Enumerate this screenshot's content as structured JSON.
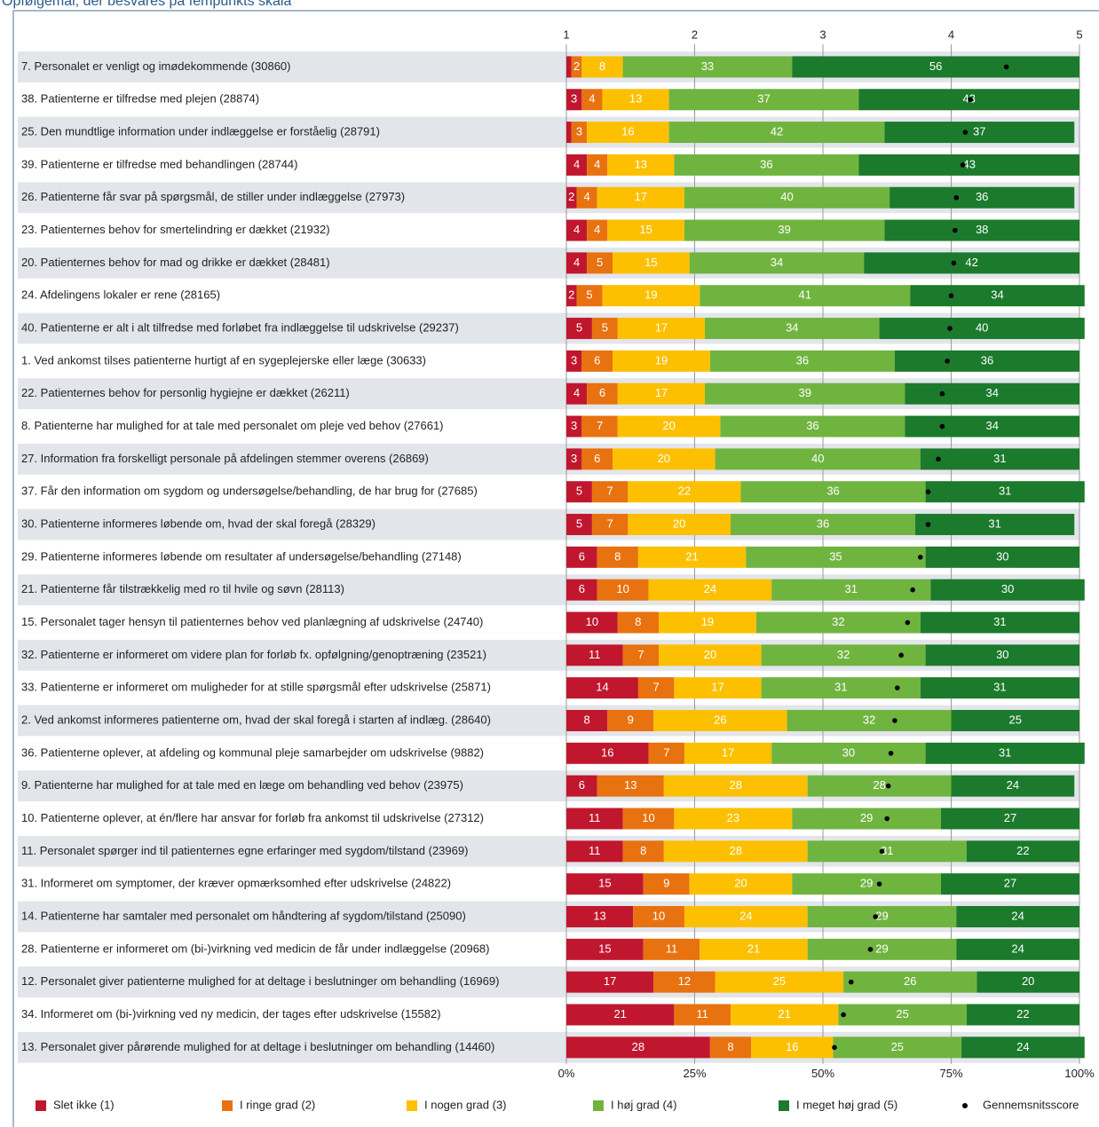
{
  "chart_data": {
    "type": "bar",
    "stacked": true,
    "orientation": "horizontal",
    "title": "Opfølgemål, der besvares på fempunkts skala",
    "categories": [
      "7. Personalet er venligt og imødekommende (30860)",
      "38. Patienterne er tilfredse med plejen (28874)",
      "25. Den mundtlige information under indlæggelse er forståelig (28791)",
      "39. Patienterne er tilfredse med behandlingen (28744)",
      "26. Patienterne får svar på spørgsmål, de stiller under indlæggelse (27973)",
      "23. Patienternes behov for smertelindring er dækket (21932)",
      "20. Patienternes behov for mad og drikke er dækket (28481)",
      "24. Afdelingens lokaler er rene (28165)",
      "40. Patienterne er alt i alt tilfredse med forløbet fra indlæggelse til udskrivelse (29237)",
      "1. Ved ankomst tilses patienterne hurtigt af en sygeplejerske eller læge (30633)",
      "22. Patienternes behov for personlig hygiejne er dækket (26211)",
      "8. Patienterne har mulighed for at tale med personalet om pleje ved behov (27661)",
      "27. Information fra forskelligt personale på afdelingen stemmer overens (26869)",
      "37. Får den information om sygdom og undersøgelse/behandling, de har brug for (27685)",
      "30. Patienterne informeres løbende om, hvad der skal foregå (28329)",
      "29. Patienterne informeres løbende om resultater af undersøgelse/behandling (27148)",
      "21. Patienterne får tilstrækkelig med ro til hvile og søvn (28113)",
      "15. Personalet tager hensyn til patienternes behov ved planlægning af udskrivelse (24740)",
      "32. Patienterne er informeret om videre plan for forløb fx. opfølgning/genoptræning (23521)",
      "33. Patienterne er informeret om muligheder for at stille spørgsmål efter udskrivelse (25871)",
      "2. Ved ankomst informeres patienterne om, hvad der skal foregå i starten af indlæg. (28640)",
      "36. Patienterne oplever, at afdeling og kommunal pleje samarbejder om udskrivelse (9882)",
      "9. Patienterne har mulighed for at tale med en læge om behandling ved behov (23975)",
      "10. Patienterne oplever, at én/flere har ansvar for forløb fra ankomst til udskrivelse (27312)",
      "11. Personalet spørger ind til patienternes egne erfaringer med sygdom/tilstand (23969)",
      "31. Informeret om symptomer, der kræver opmærksomhed efter udskrivelse (24822)",
      "14. Patienterne har samtaler med personalet om håndtering af sygdom/tilstand (25090)",
      "28.  Patienterne er informeret om (bi-)virkning ved medicin de får under indlæggelse (20968)",
      "12. Personalet giver patienterne mulighed for at deltage i beslutninger om behandling (16969)",
      "34. Informeret om (bi-)virkning ved ny medicin, der tages efter udskrivelse (15582)",
      "13. Personalet giver pårørende mulighed for at deltage i beslutninger om behandling (14460)"
    ],
    "series": [
      {
        "name": "Slet ikke (1)",
        "color": "#c0172f",
        "values": [
          1,
          3,
          1,
          4,
          2,
          4,
          4,
          2,
          5,
          3,
          4,
          3,
          3,
          5,
          5,
          6,
          6,
          10,
          11,
          14,
          8,
          16,
          6,
          11,
          11,
          15,
          13,
          15,
          17,
          21,
          28
        ]
      },
      {
        "name": "I ringe grad (2)",
        "color": "#e8720f",
        "values": [
          2,
          4,
          3,
          4,
          4,
          4,
          5,
          5,
          5,
          6,
          6,
          7,
          6,
          7,
          7,
          8,
          10,
          8,
          7,
          7,
          9,
          7,
          13,
          10,
          8,
          9,
          10,
          11,
          12,
          11,
          8
        ]
      },
      {
        "name": "I nogen grad (3)",
        "color": "#fdc000",
        "values": [
          8,
          13,
          16,
          13,
          17,
          15,
          15,
          19,
          17,
          19,
          17,
          20,
          20,
          22,
          20,
          21,
          24,
          19,
          20,
          17,
          26,
          17,
          28,
          23,
          28,
          20,
          24,
          21,
          25,
          21,
          16
        ]
      },
      {
        "name": "I høj grad (4)",
        "color": "#70b440",
        "values": [
          33,
          37,
          42,
          36,
          40,
          39,
          34,
          41,
          34,
          36,
          39,
          36,
          40,
          36,
          36,
          35,
          31,
          32,
          32,
          31,
          32,
          30,
          28,
          29,
          31,
          29,
          29,
          29,
          26,
          25,
          25
        ]
      },
      {
        "name": "I meget høj grad (5)",
        "color": "#1b7a2c",
        "values": [
          56,
          43,
          37,
          43,
          36,
          38,
          42,
          34,
          40,
          36,
          34,
          34,
          31,
          31,
          31,
          30,
          30,
          31,
          30,
          31,
          25,
          31,
          24,
          27,
          22,
          27,
          24,
          24,
          20,
          22,
          24
        ]
      }
    ],
    "mean": {
      "name": "Gennemsnitsscore",
      "color": "#000000",
      "values": [
        4.43,
        4.15,
        4.11,
        4.09,
        4.04,
        4.03,
        4.02,
        4.0,
        3.99,
        3.97,
        3.93,
        3.93,
        3.9,
        3.82,
        3.82,
        3.76,
        3.7,
        3.66,
        3.61,
        3.58,
        3.56,
        3.53,
        3.51,
        3.5,
        3.46,
        3.44,
        3.41,
        3.37,
        3.22,
        3.16,
        3.09
      ]
    },
    "xlim": [
      0,
      100
    ],
    "xticks": [
      {
        "value": 0,
        "label": "0%"
      },
      {
        "value": 25,
        "label": "25%"
      },
      {
        "value": 50,
        "label": "50%"
      },
      {
        "value": 75,
        "label": "75%"
      },
      {
        "value": 100,
        "label": "100%"
      }
    ],
    "x2lim": [
      1,
      5
    ],
    "x2ticks": [
      1,
      2,
      3,
      4,
      5
    ],
    "grid": true
  }
}
